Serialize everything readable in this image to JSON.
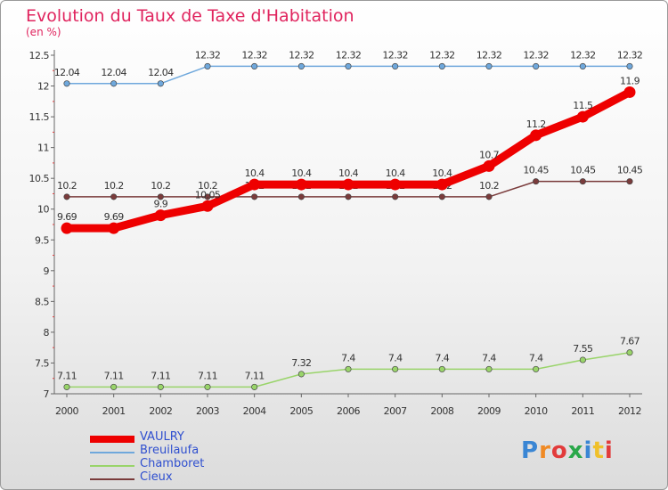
{
  "title": "Evolution du Taux de Taxe d'Habitation",
  "subtitle": "(en %)",
  "logo": {
    "text": "Proxiti",
    "letter_colors": [
      "#3a86d4",
      "#f08a24",
      "#e23b3b",
      "#2aa84a",
      "#3a86d4",
      "#f0c02a",
      "#e23b3b"
    ]
  },
  "chart_data": {
    "type": "line",
    "title": "Evolution du Taux de Taxe d'Habitation",
    "subtitle": "(en %)",
    "xlabel": "",
    "ylabel": "",
    "x": [
      "2000",
      "2001",
      "2002",
      "2003",
      "2004",
      "2005",
      "2006",
      "2007",
      "2008",
      "2009",
      "2010",
      "2011",
      "2012"
    ],
    "ylim": [
      7,
      12.5
    ],
    "yticks": [
      "7",
      "7.5",
      "8",
      "8.5",
      "9",
      "9.5",
      "10",
      "10.5",
      "11",
      "11.5",
      "12",
      "12.5"
    ],
    "grid": false,
    "legend_position": "bottom-left",
    "series": [
      {
        "name": "VAULRY",
        "color": "#ee0000",
        "emphasis": true,
        "values": [
          9.69,
          9.69,
          9.9,
          10.05,
          10.4,
          10.4,
          10.4,
          10.4,
          10.4,
          10.7,
          11.2,
          11.5,
          11.9
        ],
        "labels": [
          "9.69",
          "9.69",
          "9.9",
          "10.05",
          "10.4",
          "10.4",
          "10.4",
          "10.4",
          "10.4",
          "10.7",
          "11.2",
          "11.5",
          "11.9"
        ]
      },
      {
        "name": "Breuilaufa",
        "color": "#6fa8dc",
        "emphasis": false,
        "values": [
          12.04,
          12.04,
          12.04,
          12.32,
          12.32,
          12.32,
          12.32,
          12.32,
          12.32,
          12.32,
          12.32,
          12.32,
          12.32
        ],
        "labels": [
          "12.04",
          "12.04",
          "12.04",
          "12.32",
          "12.32",
          "12.32",
          "12.32",
          "12.32",
          "12.32",
          "12.32",
          "12.32",
          "12.32",
          "12.32"
        ]
      },
      {
        "name": "Chamboret",
        "color": "#99d46a",
        "emphasis": false,
        "values": [
          7.11,
          7.11,
          7.11,
          7.11,
          7.11,
          7.32,
          7.4,
          7.4,
          7.4,
          7.4,
          7.4,
          7.55,
          7.67
        ],
        "labels": [
          "7.11",
          "7.11",
          "7.11",
          "7.11",
          "7.11",
          "7.32",
          "7.4",
          "7.4",
          "7.4",
          "7.4",
          "7.4",
          "7.55",
          "7.67"
        ]
      },
      {
        "name": "Cieux",
        "color": "#7a3b3b",
        "emphasis": false,
        "values": [
          10.2,
          10.2,
          10.2,
          10.2,
          10.2,
          10.2,
          10.2,
          10.2,
          10.2,
          10.2,
          10.45,
          10.45,
          10.45
        ],
        "labels": [
          "10.2",
          "10.2",
          "10.2",
          "10.2",
          "10.2",
          "10.2",
          "10.2",
          "10.2",
          "10.2",
          "10.2",
          "10.45",
          "10.45",
          "10.45"
        ]
      }
    ]
  }
}
